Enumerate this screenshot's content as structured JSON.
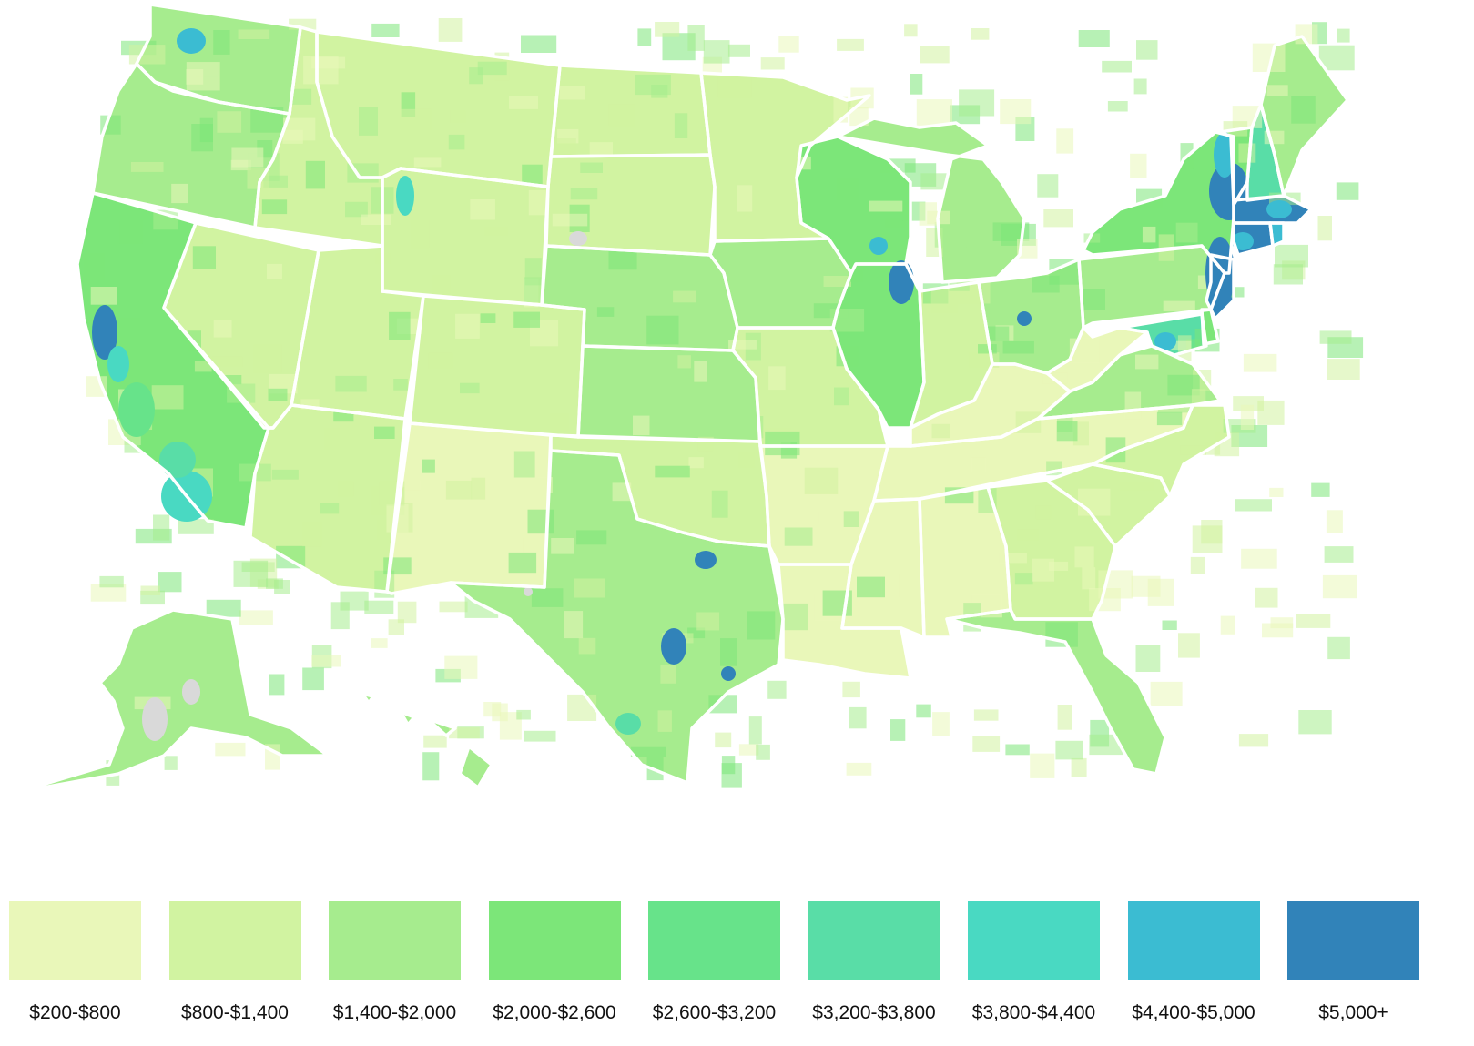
{
  "map": {
    "states": [
      {
        "id": "WA",
        "color": "#a6ec8e"
      },
      {
        "id": "OR",
        "color": "#a6ec8e"
      },
      {
        "id": "CA",
        "color": "#7ce679"
      },
      {
        "id": "NV",
        "color": "#d1f3a1"
      },
      {
        "id": "ID",
        "color": "#d1f3a1"
      },
      {
        "id": "MT",
        "color": "#d1f3a1"
      },
      {
        "id": "WY",
        "color": "#d1f3a1"
      },
      {
        "id": "UT",
        "color": "#d1f3a1"
      },
      {
        "id": "AZ",
        "color": "#d1f3a1"
      },
      {
        "id": "CO",
        "color": "#d1f3a1"
      },
      {
        "id": "NM",
        "color": "#e9f7b9"
      },
      {
        "id": "ND",
        "color": "#d1f3a1"
      },
      {
        "id": "SD",
        "color": "#d1f3a1"
      },
      {
        "id": "NE",
        "color": "#a6ec8e"
      },
      {
        "id": "KS",
        "color": "#a6ec8e"
      },
      {
        "id": "OK",
        "color": "#d1f3a1"
      },
      {
        "id": "TX",
        "color": "#a6ec8e"
      },
      {
        "id": "MN",
        "color": "#d1f3a1"
      },
      {
        "id": "IA",
        "color": "#a6ec8e"
      },
      {
        "id": "MO",
        "color": "#d1f3a1"
      },
      {
        "id": "AR",
        "color": "#e9f7b9"
      },
      {
        "id": "LA",
        "color": "#e9f7b9"
      },
      {
        "id": "WI",
        "color": "#7ce679"
      },
      {
        "id": "IL",
        "color": "#7ce679"
      },
      {
        "id": "MI",
        "color": "#a6ec8e"
      },
      {
        "id": "IN",
        "color": "#d1f3a1"
      },
      {
        "id": "OH",
        "color": "#a6ec8e"
      },
      {
        "id": "KY",
        "color": "#e9f7b9"
      },
      {
        "id": "TN",
        "color": "#e9f7b9"
      },
      {
        "id": "MS",
        "color": "#e9f7b9"
      },
      {
        "id": "AL",
        "color": "#e9f7b9"
      },
      {
        "id": "GA",
        "color": "#d1f3a1"
      },
      {
        "id": "FL",
        "color": "#a6ec8e"
      },
      {
        "id": "SC",
        "color": "#d1f3a1"
      },
      {
        "id": "NC",
        "color": "#d1f3a1"
      },
      {
        "id": "VA",
        "color": "#a6ec8e"
      },
      {
        "id": "WV",
        "color": "#e9f7b9"
      },
      {
        "id": "PA",
        "color": "#a6ec8e"
      },
      {
        "id": "NY",
        "color": "#7ce679"
      },
      {
        "id": "VT",
        "color": "#7ce679"
      },
      {
        "id": "NH",
        "color": "#59dda7"
      },
      {
        "id": "ME",
        "color": "#a6ec8e"
      },
      {
        "id": "MA",
        "color": "#3183b9"
      },
      {
        "id": "CT",
        "color": "#3183b9"
      },
      {
        "id": "RI",
        "color": "#3bbcd2"
      },
      {
        "id": "NJ",
        "color": "#3183b9"
      },
      {
        "id": "DE",
        "color": "#7ce679"
      },
      {
        "id": "MD",
        "color": "#59dda7"
      },
      {
        "id": "AK",
        "color": "#a6ec8e"
      },
      {
        "id": "HI",
        "color": "#a6ec8e"
      }
    ],
    "no_data_color": "#d9d9d9"
  },
  "legend": {
    "items": [
      {
        "label": "$200-$800",
        "color": "#e9f7b9"
      },
      {
        "label": "$800-$1,400",
        "color": "#d1f3a1"
      },
      {
        "label": "$1,400-$2,000",
        "color": "#a6ec8e"
      },
      {
        "label": "$2,000-$2,600",
        "color": "#7ce679"
      },
      {
        "label": "$2,600-$3,200",
        "color": "#67e38a"
      },
      {
        "label": "$3,200-$3,800",
        "color": "#59dda7"
      },
      {
        "label": "$3,800-$4,400",
        "color": "#49d9c2"
      },
      {
        "label": "$4,400-$5,000",
        "color": "#3bbcd2"
      },
      {
        "label": "$5,000+",
        "color": "#3183b9"
      }
    ]
  }
}
